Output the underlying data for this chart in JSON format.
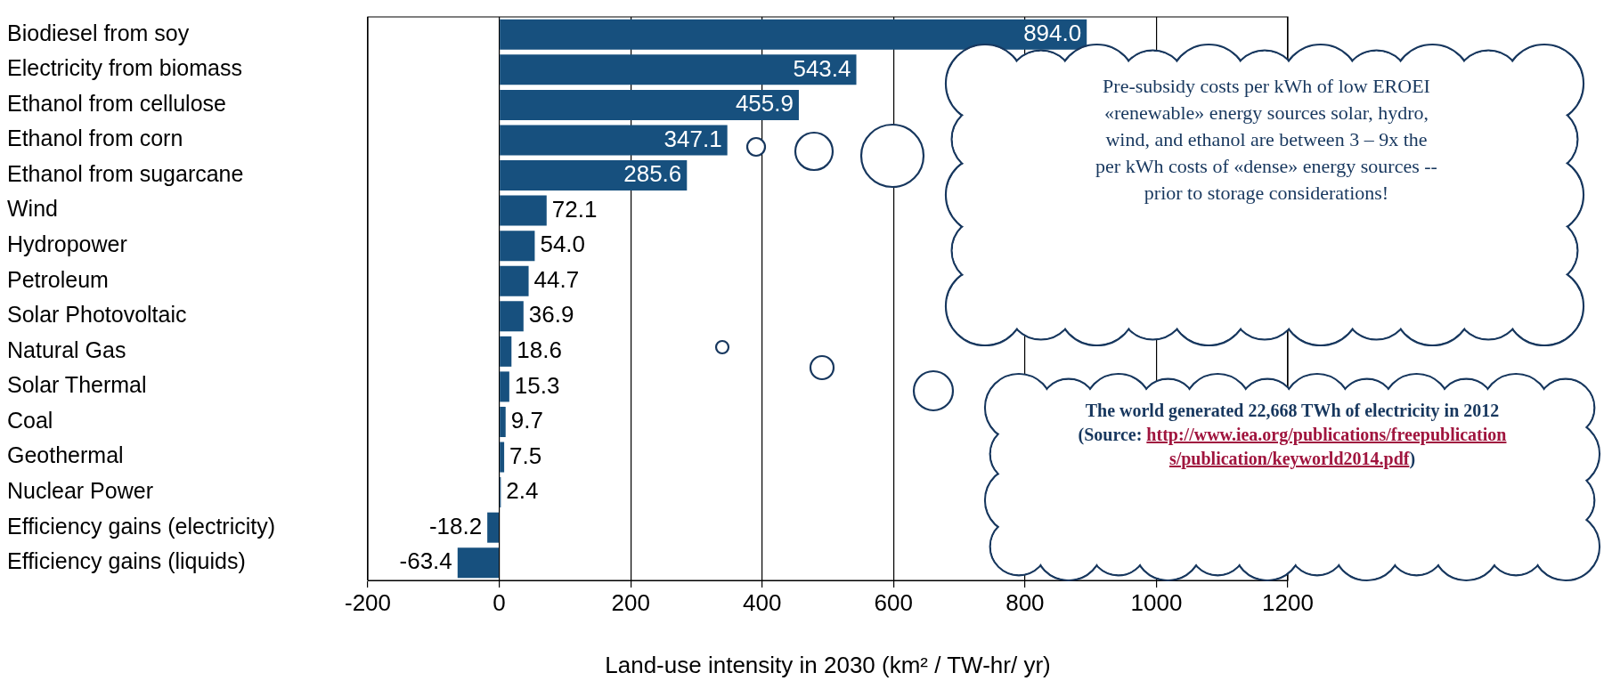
{
  "chart_data": {
    "type": "bar",
    "orientation": "horizontal",
    "xlabel": "Land-use intensity in 2030 (km² / TW-hr/ yr)",
    "categories": [
      "Biodiesel from soy",
      "Electricity from biomass",
      "Ethanol from cellulose",
      "Ethanol from corn",
      "Ethanol from sugarcane",
      "Wind",
      "Hydropower",
      "Petroleum",
      "Solar Photovoltaic",
      "Natural Gas",
      "Solar Thermal",
      "Coal",
      "Geothermal",
      "Nuclear Power",
      "Efficiency gains (electricity)",
      "Efficiency gains (liquids)"
    ],
    "values": [
      894.0,
      543.4,
      455.9,
      347.1,
      285.6,
      72.1,
      54.0,
      44.7,
      36.9,
      18.6,
      15.3,
      9.7,
      7.5,
      2.4,
      -18.2,
      -63.4
    ],
    "value_labels": [
      "894.0",
      "543.4",
      "455.9",
      "347.1",
      "285.6",
      "72.1",
      "54.0",
      "44.7",
      "36.9",
      "18.6",
      "15.3",
      "9.7",
      "7.5",
      "2.4",
      "-18.2",
      "-63.4"
    ],
    "color": "#17507e",
    "xlim": [
      -200,
      1200
    ],
    "xticks": [
      -200,
      0,
      200,
      400,
      600,
      800,
      1000,
      1200
    ],
    "grid": "x",
    "legend": false,
    "annotations": [
      "Pre-subsidy costs per kWh of low EROEI «renewable» energy sources  solar, hydro, wind, and ethanol are between 3 – 9x the per kWh costs of «dense» energy sources -- prior to storage considerations!",
      "The world generated 22,668 TWh of electricity in 2012 (Source: http://www.iea.org/publications/freepublications/publication/keyworld2014.pdf)"
    ]
  }
}
